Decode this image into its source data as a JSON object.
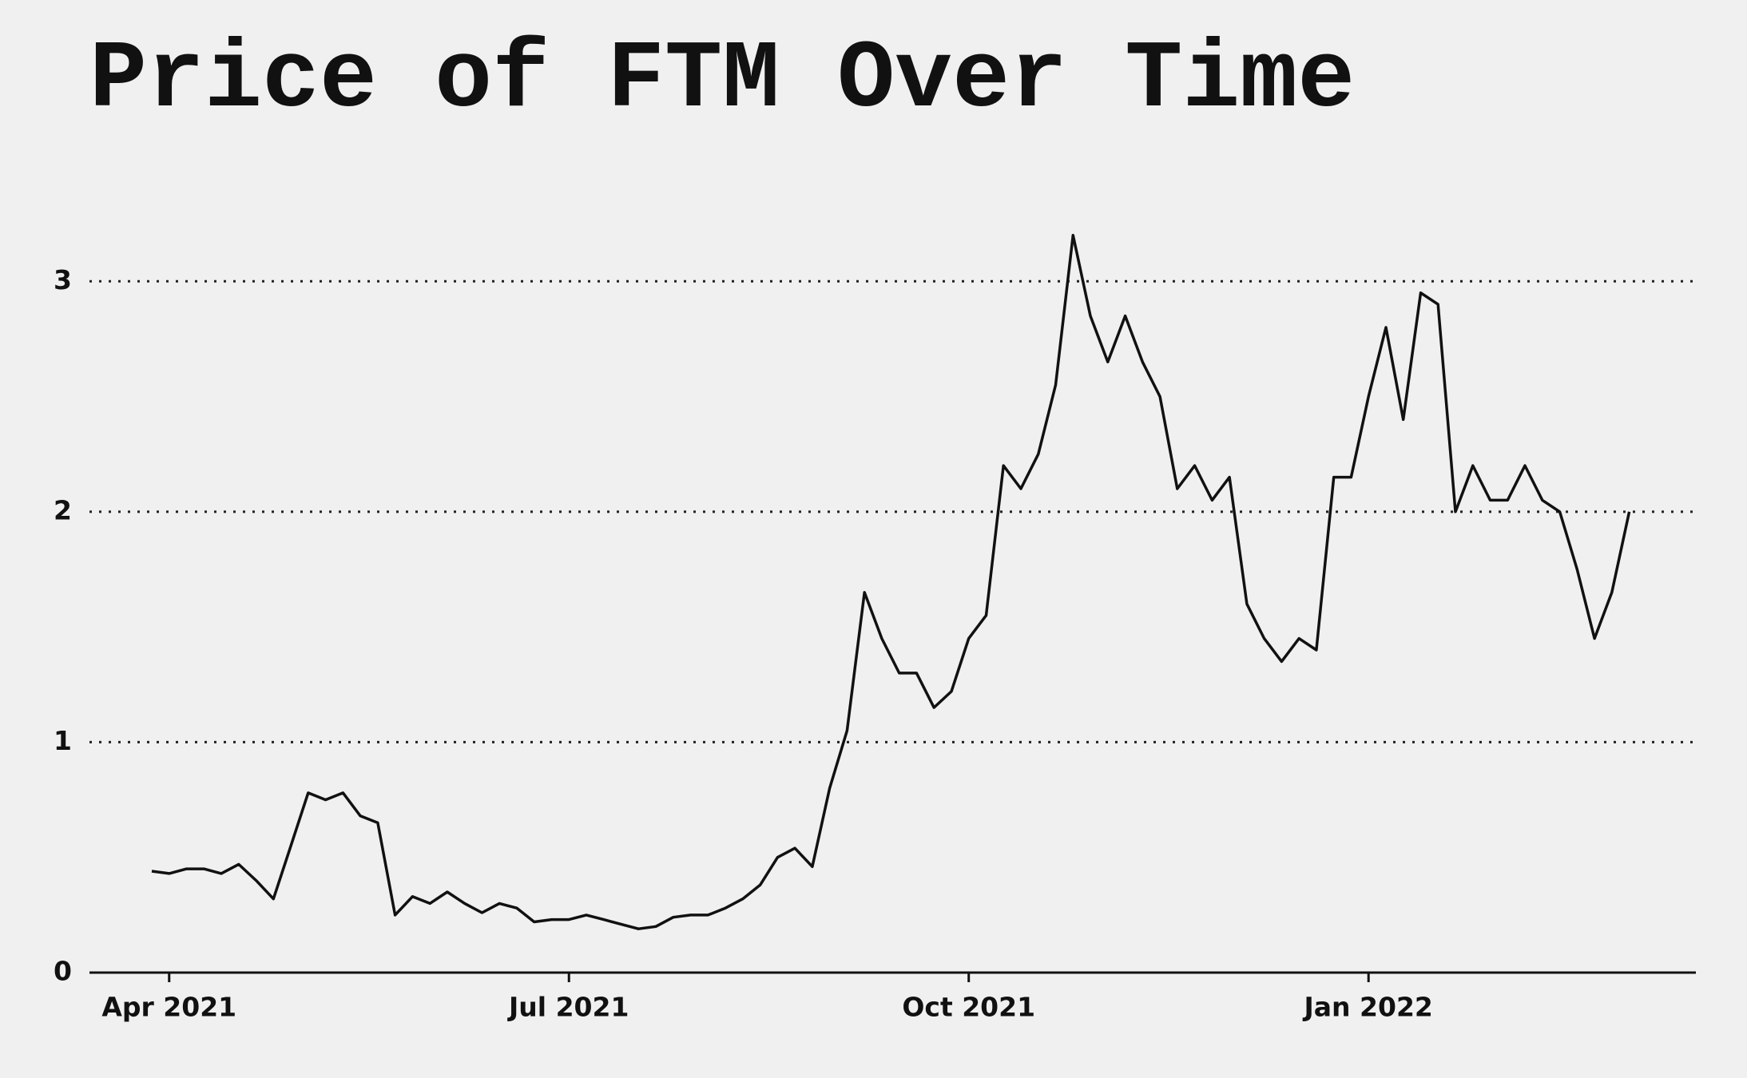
{
  "chart_data": {
    "type": "line",
    "title": "Price of FTM Over Time",
    "categories": [
      null,
      "Apr 2021",
      null,
      null,
      null,
      null,
      null,
      null,
      null,
      null,
      null,
      null,
      null,
      null,
      null,
      null,
      null,
      null,
      null,
      null,
      null,
      null,
      null,
      null,
      "Jul 2021",
      null,
      null,
      null,
      null,
      null,
      null,
      null,
      null,
      null,
      null,
      null,
      null,
      null,
      null,
      null,
      null,
      null,
      null,
      null,
      null,
      null,
      null,
      "Oct 2021",
      null,
      null,
      null,
      null,
      null,
      null,
      null,
      null,
      null,
      null,
      null,
      null,
      null,
      null,
      null,
      null,
      null,
      null,
      null,
      null,
      null,
      null,
      "Jan 2022",
      null,
      null,
      null,
      null,
      null,
      null,
      null,
      null,
      null,
      null,
      null,
      null,
      null,
      null,
      null
    ],
    "series": [
      {
        "name": "FTM",
        "color": "#111111",
        "values": [
          0.44,
          0.43,
          0.45,
          0.45,
          0.43,
          0.47,
          0.4,
          0.32,
          0.55,
          0.78,
          0.75,
          0.78,
          0.68,
          0.65,
          0.25,
          0.33,
          0.3,
          0.35,
          0.3,
          0.26,
          0.3,
          0.28,
          0.22,
          0.23,
          0.23,
          0.25,
          0.23,
          0.21,
          0.19,
          0.2,
          0.24,
          0.25,
          0.25,
          0.28,
          0.32,
          0.38,
          0.5,
          0.54,
          0.46,
          0.8,
          1.05,
          1.65,
          1.45,
          1.3,
          1.3,
          1.15,
          1.22,
          1.45,
          1.55,
          2.2,
          2.1,
          2.25,
          2.55,
          3.2,
          2.85,
          2.65,
          2.85,
          2.65,
          2.5,
          2.1,
          2.2,
          2.05,
          2.15,
          1.6,
          1.45,
          1.35,
          1.45,
          1.4,
          2.15,
          2.15,
          2.5,
          2.8,
          2.4,
          2.95,
          2.9,
          2.0,
          2.2,
          2.05,
          2.05,
          2.2,
          2.05,
          2.0,
          1.75,
          1.45,
          1.65,
          2.0
        ]
      }
    ],
    "ylim": [
      0,
      3.5
    ],
    "yticks": [
      0,
      1,
      2,
      3
    ],
    "grid": true
  }
}
